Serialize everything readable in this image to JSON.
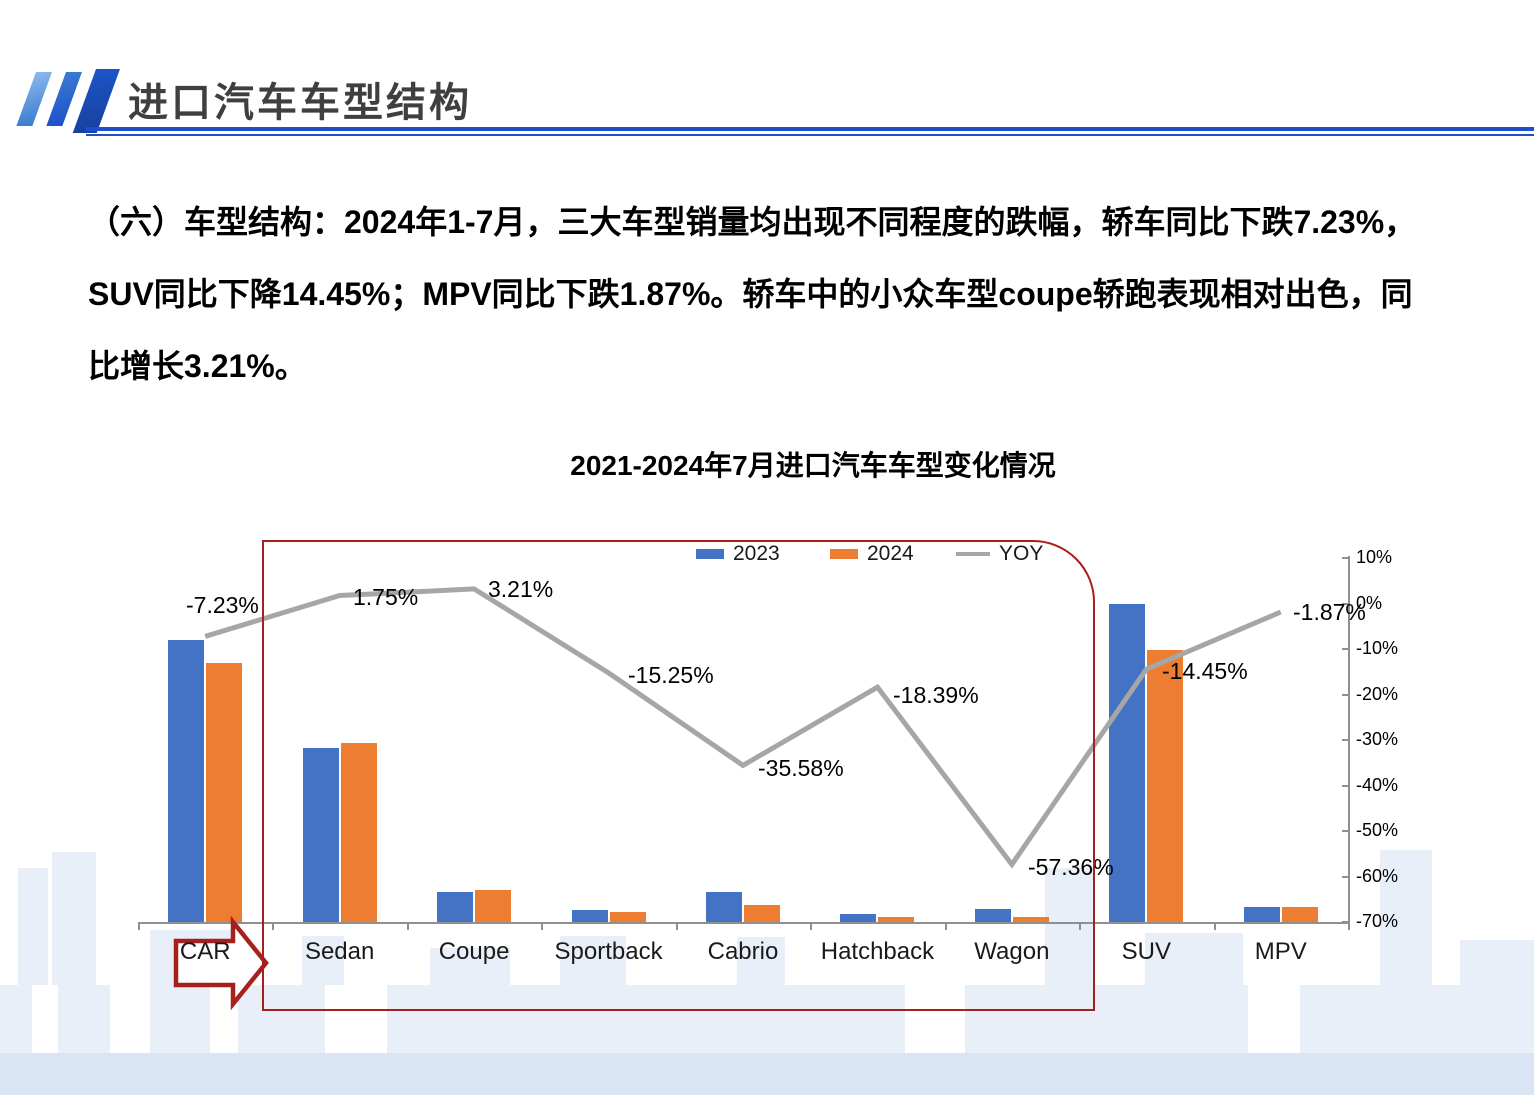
{
  "header": {
    "title": "进口汽车车型结构"
  },
  "paragraph_lines": [
    "（六）车型结构：2024年1-7月，三大车型销量均出现不同程度的跌幅，轿车同比下跌7.23%，",
    "SUV同比下降14.45%；MPV同比下跌1.87%。轿车中的小众车型coupe轿跑表现相对出色，同",
    "比增长3.21%。"
  ],
  "chart_data": {
    "type": "bar",
    "subtype": "bar+line combo",
    "title": "2021-2024年7月进口汽车车型变化情况",
    "categories": [
      "CAR",
      "Sedan",
      "Coupe",
      "Sportback",
      "Cabrio",
      "Hatchback",
      "Wagon",
      "SUV",
      "MPV"
    ],
    "series": [
      {
        "name": "2023",
        "type": "bar",
        "color": "#4472C4",
        "unit": "relative volume, estimated (SUV 2023 = 100; value axis not shown)",
        "values": [
          88.7,
          54.6,
          9.5,
          3.8,
          9.3,
          2.5,
          4.1,
          100,
          4.8
        ]
      },
      {
        "name": "2024",
        "type": "bar",
        "color": "#ED7D31",
        "unit": "relative volume, estimated (SUV 2023 = 100; value axis not shown)",
        "values": [
          81.4,
          56.2,
          10.1,
          3.1,
          5.3,
          1.7,
          1.5,
          85.5,
          4.6
        ]
      },
      {
        "name": "YOY",
        "type": "line",
        "color": "#A6A6A6",
        "unit": "percent",
        "values": [
          -7.23,
          1.75,
          3.21,
          -15.25,
          -35.58,
          -18.39,
          -57.36,
          -14.45,
          -1.87
        ]
      }
    ],
    "data_labels": [
      "-7.23%",
      "1.75%",
      "3.21%",
      "-15.25%",
      "-35.58%",
      "-18.39%",
      "-57.36%",
      "-14.45%",
      "-1.87%"
    ],
    "legend": [
      {
        "label": "2023"
      },
      {
        "label": "2024"
      },
      {
        "label": "YOY"
      }
    ],
    "legend_position": "top-center",
    "y_axis_right": {
      "ticks": [
        "10%",
        "0%",
        "-10%",
        "-20%",
        "-30%",
        "-40%",
        "-50%",
        "-60%",
        "-70%"
      ],
      "max": 10,
      "min": -70,
      "grid": false
    }
  },
  "colors": {
    "bar_2023": "#4472C4",
    "bar_2024": "#ED7D31",
    "yoy_line": "#A6A6A6",
    "highlight_red": "#A8201D",
    "header_line_blue": "#1D50C8",
    "logo_blue_light": "#8AB8EC",
    "logo_blue_mid": "#3A7BD0",
    "logo_blue_dark": "#1E55C9",
    "title_gray": "#3F3F3F",
    "skyline_blue": "#E9EFF9",
    "skyline_band": "#D9E4F4",
    "axis_gray": "#8F8F8F"
  }
}
